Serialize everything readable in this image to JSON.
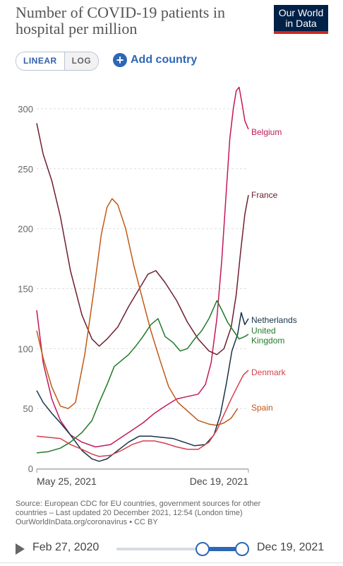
{
  "header": {
    "title": "Number of COVID-19 patients in hospital per million",
    "logo_line1": "Our World",
    "logo_line2": "in Data"
  },
  "controls": {
    "scale_options": [
      "LINEAR",
      "LOG"
    ],
    "scale_selected": "LINEAR",
    "add_country_label": "Add country",
    "colors": {
      "accent": "#2c67b8",
      "brand_bg": "#002147",
      "brand_stripe": "#ce261e"
    }
  },
  "chart_data": {
    "type": "line",
    "title": "Number of COVID-19 patients in hospital per million",
    "xlabel": "",
    "ylabel": "",
    "x_range": [
      "2020-02-27",
      "2021-12-19"
    ],
    "x_ticks": [
      "May 25, 2021",
      "Dec 19, 2021"
    ],
    "ylim": [
      0,
      320
    ],
    "y_ticks": [
      0,
      50,
      100,
      150,
      200,
      250,
      300
    ],
    "grid": "horizontal dashed",
    "legend": "inline-right",
    "series": [
      {
        "name": "Belgium",
        "color": "#c2185b",
        "points": [
          [
            "2021-02-27",
            132
          ],
          [
            "2021-03-08",
            88
          ],
          [
            "2021-03-20",
            58
          ],
          [
            "2021-04-01",
            40
          ],
          [
            "2021-04-15",
            28
          ],
          [
            "2021-05-01",
            22
          ],
          [
            "2021-05-20",
            18
          ],
          [
            "2021-06-10",
            20
          ],
          [
            "2021-06-25",
            26
          ],
          [
            "2021-07-10",
            32
          ],
          [
            "2021-07-25",
            38
          ],
          [
            "2021-08-10",
            46
          ],
          [
            "2021-08-25",
            52
          ],
          [
            "2021-09-10",
            58
          ],
          [
            "2021-09-25",
            60
          ],
          [
            "2021-10-10",
            62
          ],
          [
            "2021-10-20",
            70
          ],
          [
            "2021-10-28",
            88
          ],
          [
            "2021-11-05",
            125
          ],
          [
            "2021-11-12",
            175
          ],
          [
            "2021-11-18",
            230
          ],
          [
            "2021-11-23",
            275
          ],
          [
            "2021-11-28",
            300
          ],
          [
            "2021-12-02",
            315
          ],
          [
            "2021-12-06",
            318
          ],
          [
            "2021-12-10",
            305
          ],
          [
            "2021-12-14",
            290
          ],
          [
            "2021-12-19",
            283
          ]
        ]
      },
      {
        "name": "France",
        "color": "#6d1f2e",
        "points": [
          [
            "2021-02-27",
            288
          ],
          [
            "2021-03-08",
            262
          ],
          [
            "2021-03-20",
            240
          ],
          [
            "2021-04-01",
            210
          ],
          [
            "2021-04-15",
            165
          ],
          [
            "2021-05-01",
            128
          ],
          [
            "2021-05-15",
            108
          ],
          [
            "2021-05-25",
            102
          ],
          [
            "2021-06-05",
            108
          ],
          [
            "2021-06-20",
            118
          ],
          [
            "2021-07-05",
            135
          ],
          [
            "2021-07-20",
            150
          ],
          [
            "2021-08-01",
            162
          ],
          [
            "2021-08-12",
            165
          ],
          [
            "2021-08-25",
            155
          ],
          [
            "2021-09-10",
            140
          ],
          [
            "2021-09-25",
            122
          ],
          [
            "2021-10-10",
            108
          ],
          [
            "2021-10-25",
            98
          ],
          [
            "2021-11-05",
            95
          ],
          [
            "2021-11-15",
            100
          ],
          [
            "2021-11-25",
            118
          ],
          [
            "2021-12-02",
            145
          ],
          [
            "2021-12-08",
            180
          ],
          [
            "2021-12-14",
            212
          ],
          [
            "2021-12-19",
            228
          ]
        ]
      },
      {
        "name": "Spain",
        "color": "#c05917",
        "points": [
          [
            "2021-02-27",
            115
          ],
          [
            "2021-03-08",
            92
          ],
          [
            "2021-03-20",
            68
          ],
          [
            "2021-04-01",
            52
          ],
          [
            "2021-04-12",
            50
          ],
          [
            "2021-04-22",
            55
          ],
          [
            "2021-05-05",
            95
          ],
          [
            "2021-05-18",
            150
          ],
          [
            "2021-05-28",
            195
          ],
          [
            "2021-06-05",
            218
          ],
          [
            "2021-06-12",
            225
          ],
          [
            "2021-06-20",
            220
          ],
          [
            "2021-07-01",
            200
          ],
          [
            "2021-07-12",
            170
          ],
          [
            "2021-07-25",
            140
          ],
          [
            "2021-08-05",
            115
          ],
          [
            "2021-08-18",
            90
          ],
          [
            "2021-08-30",
            68
          ],
          [
            "2021-09-12",
            55
          ],
          [
            "2021-09-25",
            48
          ],
          [
            "2021-10-10",
            40
          ],
          [
            "2021-10-25",
            37
          ],
          [
            "2021-11-05",
            36
          ],
          [
            "2021-11-15",
            38
          ],
          [
            "2021-11-25",
            42
          ],
          [
            "2021-12-04",
            50
          ]
        ]
      },
      {
        "name": "Netherlands",
        "color": "#18344b",
        "points": [
          [
            "2021-02-27",
            65
          ],
          [
            "2021-03-08",
            55
          ],
          [
            "2021-03-20",
            46
          ],
          [
            "2021-04-01",
            38
          ],
          [
            "2021-04-15",
            28
          ],
          [
            "2021-05-01",
            15
          ],
          [
            "2021-05-15",
            8
          ],
          [
            "2021-05-25",
            6
          ],
          [
            "2021-06-05",
            8
          ],
          [
            "2021-06-20",
            15
          ],
          [
            "2021-07-05",
            22
          ],
          [
            "2021-07-20",
            27
          ],
          [
            "2021-08-05",
            27
          ],
          [
            "2021-08-20",
            26
          ],
          [
            "2021-09-05",
            25
          ],
          [
            "2021-09-20",
            22
          ],
          [
            "2021-10-05",
            19
          ],
          [
            "2021-10-20",
            20
          ],
          [
            "2021-11-01",
            28
          ],
          [
            "2021-11-10",
            45
          ],
          [
            "2021-11-18",
            70
          ],
          [
            "2021-11-26",
            98
          ],
          [
            "2021-12-04",
            112
          ],
          [
            "2021-12-09",
            130
          ],
          [
            "2021-12-14",
            120
          ],
          [
            "2021-12-19",
            125
          ]
        ]
      },
      {
        "name": "United Kingdom",
        "color": "#207a2a",
        "points": [
          [
            "2021-02-27",
            13
          ],
          [
            "2021-03-15",
            14
          ],
          [
            "2021-04-01",
            17
          ],
          [
            "2021-04-15",
            22
          ],
          [
            "2021-05-01",
            30
          ],
          [
            "2021-05-15",
            40
          ],
          [
            "2021-05-25",
            55
          ],
          [
            "2021-06-05",
            70
          ],
          [
            "2021-06-15",
            85
          ],
          [
            "2021-06-25",
            90
          ],
          [
            "2021-07-05",
            95
          ],
          [
            "2021-07-15",
            102
          ],
          [
            "2021-07-25",
            110
          ],
          [
            "2021-08-05",
            120
          ],
          [
            "2021-08-15",
            125
          ],
          [
            "2021-08-25",
            110
          ],
          [
            "2021-09-05",
            105
          ],
          [
            "2021-09-15",
            98
          ],
          [
            "2021-09-25",
            100
          ],
          [
            "2021-10-05",
            108
          ],
          [
            "2021-10-15",
            115
          ],
          [
            "2021-10-25",
            125
          ],
          [
            "2021-11-05",
            140
          ],
          [
            "2021-11-12",
            132
          ],
          [
            "2021-11-20",
            122
          ],
          [
            "2021-11-28",
            115
          ],
          [
            "2021-12-06",
            108
          ],
          [
            "2021-12-14",
            110
          ],
          [
            "2021-12-19",
            112
          ]
        ]
      },
      {
        "name": "Denmark",
        "color": "#d53f4c",
        "points": [
          [
            "2021-02-27",
            27
          ],
          [
            "2021-03-15",
            26
          ],
          [
            "2021-04-01",
            25
          ],
          [
            "2021-04-15",
            20
          ],
          [
            "2021-05-01",
            16
          ],
          [
            "2021-05-15",
            12
          ],
          [
            "2021-05-25",
            10
          ],
          [
            "2021-06-10",
            11
          ],
          [
            "2021-06-25",
            15
          ],
          [
            "2021-07-10",
            20
          ],
          [
            "2021-07-25",
            23
          ],
          [
            "2021-08-10",
            23
          ],
          [
            "2021-08-25",
            21
          ],
          [
            "2021-09-10",
            18
          ],
          [
            "2021-09-25",
            16
          ],
          [
            "2021-10-10",
            16
          ],
          [
            "2021-10-25",
            22
          ],
          [
            "2021-11-05",
            32
          ],
          [
            "2021-11-15",
            45
          ],
          [
            "2021-11-25",
            58
          ],
          [
            "2021-12-05",
            70
          ],
          [
            "2021-12-12",
            78
          ],
          [
            "2021-12-19",
            82
          ]
        ]
      }
    ]
  },
  "labels": {
    "belgium": "Belgium",
    "france": "France",
    "netherlands": "Netherlands",
    "uk_line1": "United",
    "uk_line2": "Kingdom",
    "denmark": "Denmark",
    "spain": "Spain"
  },
  "source": {
    "line1": "Source: European CDC for EU countries, government sources for other",
    "line2": "countries – Last updated 20 December 2021, 12:54 (London time)",
    "line3": "OurWorldInData.org/coronavirus • CC BY"
  },
  "timeline": {
    "start_label": "Feb 27, 2020",
    "end_label": "Dec 19, 2021"
  }
}
